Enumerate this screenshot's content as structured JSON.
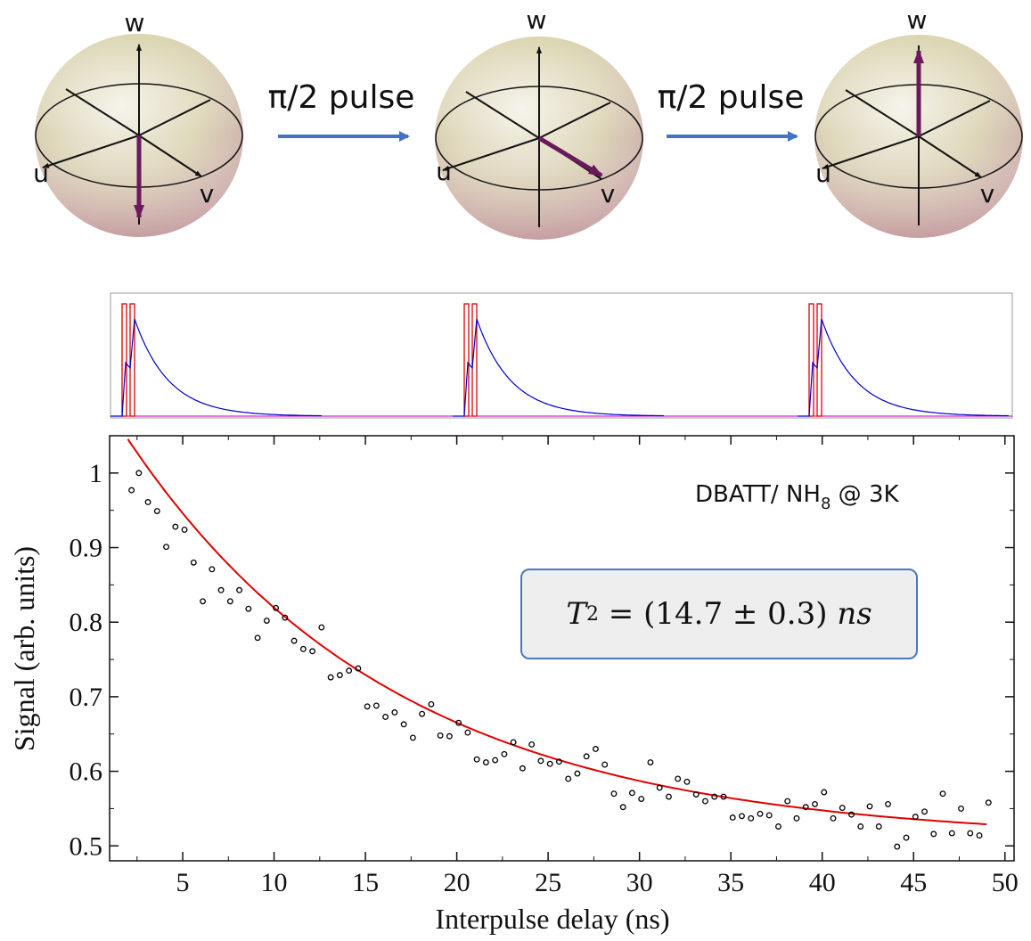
{
  "top_panel": {
    "spheres": [
      {
        "axis_w": "w",
        "axis_u": "u",
        "axis_v": "v",
        "state": "down"
      },
      {
        "axis_w": "w",
        "axis_u": "u",
        "axis_v": "v",
        "state": "equator-v"
      },
      {
        "axis_w": "w",
        "axis_u": "u",
        "axis_v": "v",
        "state": "up"
      }
    ],
    "pulse_labels": [
      "π/2 pulse",
      "π/2 pulse"
    ],
    "arrow_color": "#4472c4",
    "state_vector_color": "#6a1a5a"
  },
  "pulse_sequence": {
    "trace_color": "#0000cc",
    "gate_color": "#dd0000",
    "groups": 3
  },
  "annotation": {
    "sample_label": "DBATT/ NH",
    "sample_subscript": "8",
    "sample_suffix": " @ 3K",
    "fit_T": "T",
    "fit_sub": "2",
    "fit_text": " = (14.7 ± 0.3) ",
    "fit_unit": "ns"
  },
  "chart_data": {
    "type": "scatter",
    "title": "",
    "xlabel": "Interpulse delay (ns)",
    "ylabel": "Signal (arb. units)",
    "xlim": [
      1,
      50.5
    ],
    "ylim": [
      0.48,
      1.05
    ],
    "xticks": [
      5,
      10,
      15,
      20,
      25,
      30,
      35,
      40,
      45,
      50
    ],
    "yticks": [
      0.5,
      0.6,
      0.7,
      0.8,
      0.9,
      1
    ],
    "ytick_labels": [
      "0.5",
      "0.6",
      "0.7",
      "0.8",
      "0.9",
      "1"
    ],
    "grid": false,
    "series": [
      {
        "marker": "open-circle",
        "color": "#000000",
        "x": [
          2.2,
          2.6,
          3.1,
          3.6,
          4.1,
          4.6,
          5.1,
          5.6,
          6.1,
          6.6,
          7.1,
          7.6,
          8.1,
          8.6,
          9.1,
          9.6,
          10.1,
          10.6,
          11.1,
          11.6,
          12.1,
          12.6,
          13.1,
          13.6,
          14.1,
          14.6,
          15.1,
          15.6,
          16.1,
          16.6,
          17.1,
          17.6,
          18.1,
          18.6,
          19.1,
          19.6,
          20.1,
          20.6,
          21.1,
          21.6,
          22.1,
          22.6,
          23.1,
          23.6,
          24.1,
          24.6,
          25.1,
          25.6,
          26.1,
          26.6,
          27.1,
          27.6,
          28.1,
          28.6,
          29.1,
          29.6,
          30.1,
          30.6,
          31.1,
          31.6,
          32.1,
          32.6,
          33.1,
          33.6,
          34.1,
          34.6,
          35.1,
          35.6,
          36.1,
          36.6,
          37.1,
          37.6,
          38.1,
          38.6,
          39.1,
          39.6,
          40.1,
          40.6,
          41.1,
          41.6,
          42.1,
          42.6,
          43.1,
          43.6,
          44.1,
          44.6,
          45.1,
          45.6,
          46.1,
          46.6,
          47.1,
          47.6,
          48.1,
          48.6,
          49.1
        ],
        "values": [
          0.977,
          1.0,
          0.961,
          0.949,
          0.901,
          0.928,
          0.924,
          0.88,
          0.828,
          0.871,
          0.843,
          0.828,
          0.843,
          0.818,
          0.779,
          0.802,
          0.819,
          0.806,
          0.775,
          0.764,
          0.761,
          0.793,
          0.726,
          0.729,
          0.735,
          0.738,
          0.687,
          0.688,
          0.673,
          0.679,
          0.663,
          0.645,
          0.677,
          0.69,
          0.648,
          0.647,
          0.665,
          0.652,
          0.616,
          0.612,
          0.615,
          0.623,
          0.639,
          0.604,
          0.636,
          0.614,
          0.61,
          0.613,
          0.59,
          0.597,
          0.62,
          0.63,
          0.609,
          0.57,
          0.552,
          0.571,
          0.563,
          0.612,
          0.578,
          0.566,
          0.59,
          0.586,
          0.569,
          0.56,
          0.566,
          0.566,
          0.538,
          0.54,
          0.537,
          0.543,
          0.541,
          0.526,
          0.56,
          0.537,
          0.552,
          0.556,
          0.572,
          0.537,
          0.551,
          0.542,
          0.526,
          0.553,
          0.526,
          0.556,
          0.499,
          0.511,
          0.539,
          0.546,
          0.516,
          0.57,
          0.517,
          0.55,
          0.517,
          0.514,
          0.558
        ]
      },
      {
        "marker": "line",
        "color": "#e00000",
        "fit": {
          "model": "exponential-decay",
          "T2": 14.7,
          "T2_err": 0.3,
          "unit": "ns",
          "y0": 0.507,
          "A": 0.617
        }
      }
    ]
  }
}
